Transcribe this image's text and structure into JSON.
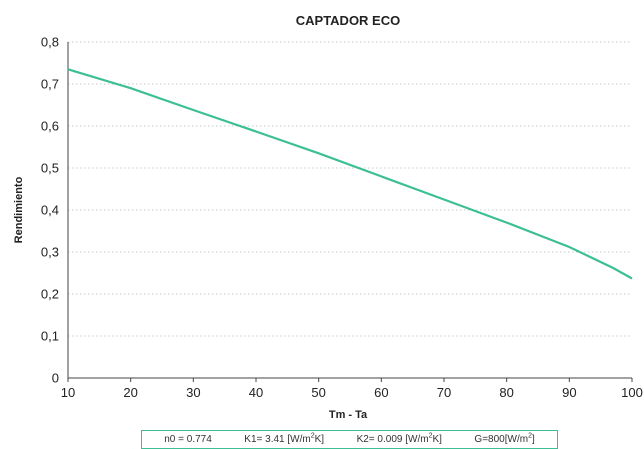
{
  "chart_data": {
    "type": "line",
    "title": "CAPTADOR ECO",
    "xlabel": "Tm - Ta",
    "ylabel": "Rendimiento",
    "xlim": [
      10,
      100
    ],
    "ylim": [
      0,
      0.8
    ],
    "x_ticks": [
      "10",
      "20",
      "30",
      "40",
      "50",
      "60",
      "70",
      "80",
      "90",
      "100"
    ],
    "y_ticks": [
      "0",
      "0,1",
      "0,2",
      "0,3",
      "0,4",
      "0,5",
      "0,6",
      "0,7",
      "0,8"
    ],
    "grid": true,
    "series": [
      {
        "color": "#3dbf95",
        "x": [
          10,
          20,
          30,
          40,
          50,
          60,
          70,
          80,
          90,
          97,
          100
        ],
        "y": [
          0.735,
          0.69,
          0.638,
          0.587,
          0.535,
          0.48,
          0.425,
          0.37,
          0.312,
          0.262,
          0.237
        ]
      }
    ]
  },
  "parameters": {
    "n0": "n0 = 0.774",
    "k1_text": "K1= 3.41 [W/m",
    "k1_sup": "2",
    "k1_end": "K]",
    "k2_text": "K2= 0.009 [W/m",
    "k2_sup": "2",
    "k2_end": "K]",
    "g_text": "G=800[W/m",
    "g_sup": "2",
    "g_end": "]"
  },
  "colors": {
    "accent": "#3dbf95"
  }
}
